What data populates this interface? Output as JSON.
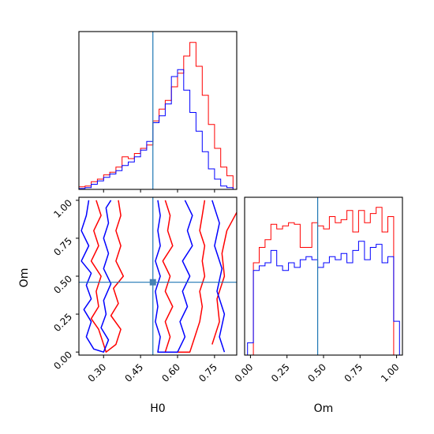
{
  "chart_data": [
    {
      "type": "histogram",
      "panel": "H0 marginal",
      "xlim": [
        0.2,
        0.84
      ],
      "truth": 0.5,
      "bins_edges": [
        0.2,
        0.225,
        0.25,
        0.275,
        0.3,
        0.325,
        0.35,
        0.375,
        0.4,
        0.425,
        0.45,
        0.475,
        0.5,
        0.525,
        0.55,
        0.575,
        0.6,
        0.625,
        0.65,
        0.675,
        0.7,
        0.725,
        0.75,
        0.775,
        0.8,
        0.825
      ],
      "series": [
        {
          "color": "#ff0000",
          "values": [
            0.015,
            0.02,
            0.045,
            0.06,
            0.085,
            0.1,
            0.13,
            0.19,
            0.18,
            0.21,
            0.24,
            0.26,
            0.4,
            0.47,
            0.52,
            0.6,
            0.68,
            0.78,
            0.86,
            0.72,
            0.55,
            0.38,
            0.24,
            0.13,
            0.08
          ]
        },
        {
          "color": "#0000ff",
          "values": [
            0.005,
            0.01,
            0.03,
            0.05,
            0.07,
            0.09,
            0.11,
            0.14,
            0.16,
            0.19,
            0.23,
            0.28,
            0.39,
            0.43,
            0.5,
            0.66,
            0.7,
            0.58,
            0.45,
            0.34,
            0.22,
            0.12,
            0.06,
            0.02,
            0.01
          ]
        }
      ]
    },
    {
      "type": "contour",
      "panel": "Om vs H0 joint",
      "xlabel": "H0",
      "ylabel": "Om",
      "xlim": [
        0.2,
        0.84
      ],
      "ylim": [
        -0.02,
        1.02
      ],
      "xticks": [
        "0.30",
        "0.45",
        "0.60",
        "0.75"
      ],
      "xtick_values": [
        0.3,
        0.45,
        0.6,
        0.75
      ],
      "yticks": [
        "0.00",
        "0.25",
        "0.50",
        "0.75",
        "1.00"
      ],
      "ytick_values": [
        0.0,
        0.25,
        0.5,
        0.75,
        1.0
      ],
      "truth": {
        "H0": 0.5,
        "Om": 0.46
      },
      "series": [
        {
          "color": "#ff0000",
          "contours": [
            [
              [
                0.27,
                1.0
              ],
              [
                0.29,
                0.9
              ],
              [
                0.26,
                0.8
              ],
              [
                0.28,
                0.7
              ],
              [
                0.25,
                0.6
              ],
              [
                0.29,
                0.5
              ],
              [
                0.27,
                0.4
              ],
              [
                0.28,
                0.3
              ],
              [
                0.25,
                0.22
              ],
              [
                0.28,
                0.15
              ],
              [
                0.3,
                0.05
              ],
              [
                0.31,
                0.0
              ],
              [
                0.35,
                0.05
              ],
              [
                0.37,
                0.15
              ],
              [
                0.33,
                0.24
              ],
              [
                0.36,
                0.32
              ],
              [
                0.34,
                0.42
              ],
              [
                0.38,
                0.5
              ],
              [
                0.35,
                0.6
              ],
              [
                0.37,
                0.7
              ],
              [
                0.35,
                0.8
              ],
              [
                0.37,
                0.9
              ],
              [
                0.36,
                1.0
              ]
            ],
            [
              [
                0.55,
                1.0
              ],
              [
                0.57,
                0.9
              ],
              [
                0.56,
                0.8
              ],
              [
                0.58,
                0.7
              ],
              [
                0.54,
                0.6
              ],
              [
                0.57,
                0.5
              ],
              [
                0.55,
                0.4
              ],
              [
                0.58,
                0.3
              ],
              [
                0.55,
                0.2
              ],
              [
                0.57,
                0.1
              ],
              [
                0.55,
                0.0
              ],
              [
                0.65,
                0.0
              ],
              [
                0.67,
                0.1
              ],
              [
                0.69,
                0.2
              ],
              [
                0.7,
                0.3
              ],
              [
                0.69,
                0.4
              ],
              [
                0.71,
                0.5
              ],
              [
                0.7,
                0.6
              ],
              [
                0.71,
                0.7
              ],
              [
                0.69,
                0.8
              ],
              [
                0.7,
                0.9
              ],
              [
                0.71,
                1.0
              ]
            ],
            [
              [
                0.74,
                0.05
              ],
              [
                0.77,
                0.2
              ],
              [
                0.76,
                0.35
              ],
              [
                0.79,
                0.5
              ],
              [
                0.78,
                0.65
              ],
              [
                0.8,
                0.8
              ],
              [
                0.84,
                0.92
              ]
            ]
          ]
        },
        {
          "color": "#0000ff",
          "contours": [
            [
              [
                0.24,
                1.0
              ],
              [
                0.23,
                0.9
              ],
              [
                0.21,
                0.8
              ],
              [
                0.24,
                0.7
              ],
              [
                0.21,
                0.6
              ],
              [
                0.25,
                0.52
              ],
              [
                0.23,
                0.44
              ],
              [
                0.25,
                0.35
              ],
              [
                0.22,
                0.28
              ],
              [
                0.25,
                0.2
              ],
              [
                0.23,
                0.1
              ],
              [
                0.26,
                0.02
              ],
              [
                0.3,
                0.0
              ],
              [
                0.32,
                0.08
              ],
              [
                0.29,
                0.16
              ],
              [
                0.31,
                0.25
              ],
              [
                0.3,
                0.34
              ],
              [
                0.33,
                0.45
              ],
              [
                0.3,
                0.55
              ],
              [
                0.32,
                0.65
              ],
              [
                0.3,
                0.75
              ],
              [
                0.32,
                0.85
              ],
              [
                0.31,
                0.95
              ],
              [
                0.33,
                1.0
              ]
            ],
            [
              [
                0.63,
                1.0
              ],
              [
                0.66,
                0.9
              ],
              [
                0.64,
                0.8
              ],
              [
                0.66,
                0.7
              ],
              [
                0.62,
                0.6
              ],
              [
                0.65,
                0.5
              ],
              [
                0.62,
                0.4
              ],
              [
                0.64,
                0.3
              ],
              [
                0.61,
                0.2
              ],
              [
                0.63,
                0.1
              ],
              [
                0.6,
                0.0
              ],
              [
                0.52,
                0.0
              ],
              [
                0.53,
                0.1
              ],
              [
                0.51,
                0.2
              ],
              [
                0.52,
                0.3
              ],
              [
                0.51,
                0.4
              ],
              [
                0.53,
                0.5
              ],
              [
                0.51,
                0.6
              ],
              [
                0.53,
                0.7
              ],
              [
                0.52,
                0.8
              ],
              [
                0.53,
                0.9
              ],
              [
                0.52,
                1.0
              ]
            ],
            [
              [
                0.74,
                1.0
              ],
              [
                0.77,
                0.85
              ],
              [
                0.75,
                0.7
              ],
              [
                0.78,
                0.55
              ],
              [
                0.76,
                0.4
              ],
              [
                0.79,
                0.25
              ],
              [
                0.77,
                0.1
              ],
              [
                0.79,
                0.0
              ]
            ]
          ]
        }
      ]
    },
    {
      "type": "histogram",
      "panel": "Om marginal",
      "xlabel": "Om",
      "xlim": [
        -0.04,
        1.04
      ],
      "xticks": [
        "0.00",
        "0.25",
        "0.50",
        "0.75",
        "1.00"
      ],
      "xtick_values": [
        0.0,
        0.25,
        0.5,
        0.75,
        1.0
      ],
      "truth": 0.46,
      "bins_edges": [
        -0.02,
        0.02,
        0.06,
        0.1,
        0.14,
        0.18,
        0.22,
        0.26,
        0.3,
        0.34,
        0.38,
        0.42,
        0.46,
        0.5,
        0.54,
        0.58,
        0.62,
        0.66,
        0.7,
        0.74,
        0.78,
        0.82,
        0.86,
        0.9,
        0.94,
        0.98,
        1.02
      ],
      "series": [
        {
          "color": "#ff0000",
          "values": [
            0.0,
            0.6,
            0.7,
            0.75,
            0.85,
            0.82,
            0.84,
            0.86,
            0.85,
            0.7,
            0.7,
            0.86,
            0.84,
            0.82,
            0.9,
            0.86,
            0.88,
            0.94,
            0.8,
            0.94,
            0.86,
            0.92,
            0.96,
            0.8,
            0.9,
            0.0
          ]
        },
        {
          "color": "#0000ff",
          "values": [
            0.08,
            0.55,
            0.58,
            0.6,
            0.68,
            0.58,
            0.55,
            0.6,
            0.57,
            0.62,
            0.64,
            0.62,
            0.57,
            0.6,
            0.64,
            0.62,
            0.66,
            0.6,
            0.68,
            0.74,
            0.62,
            0.7,
            0.72,
            0.6,
            0.64,
            0.22
          ]
        }
      ]
    }
  ],
  "colors": {
    "axis": "#000000",
    "truth": "#1f77b4",
    "truth_marker": "#4682b4"
  }
}
